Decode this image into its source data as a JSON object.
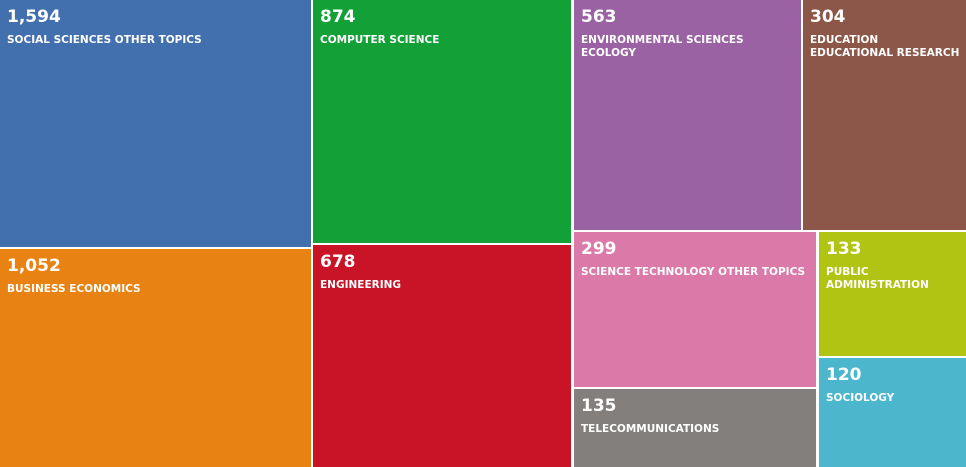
{
  "chart_data": {
    "type": "treemap",
    "title": "",
    "items": [
      {
        "label": "SOCIAL SCIENCES OTHER TOPICS",
        "value": 1594,
        "value_text": "1,594",
        "color": "#4270AE"
      },
      {
        "label": "BUSINESS ECONOMICS",
        "value": 1052,
        "value_text": "1,052",
        "color": "#E88313"
      },
      {
        "label": "COMPUTER SCIENCE",
        "value": 874,
        "value_text": "874",
        "color": "#12A037"
      },
      {
        "label": "ENGINEERING",
        "value": 678,
        "value_text": "678",
        "color": "#C91327"
      },
      {
        "label": "ENVIRONMENTAL SCIENCES ECOLOGY",
        "value": 563,
        "value_text": "563",
        "color": "#9A62A2"
      },
      {
        "label": "EDUCATION EDUCATIONAL RESEARCH",
        "value": 304,
        "value_text": "304",
        "color": "#8C5748"
      },
      {
        "label": "SCIENCE TECHNOLOGY OTHER TOPICS",
        "value": 299,
        "value_text": "299",
        "color": "#DB79A8"
      },
      {
        "label": "TELECOMMUNICATIONS",
        "value": 135,
        "value_text": "135",
        "color": "#837F7C"
      },
      {
        "label": "PUBLIC ADMINISTRATION",
        "value": 133,
        "value_text": "133",
        "color": "#B1C313"
      },
      {
        "label": "SOCIOLOGY",
        "value": 120,
        "value_text": "120",
        "color": "#4BB6CC"
      }
    ]
  }
}
